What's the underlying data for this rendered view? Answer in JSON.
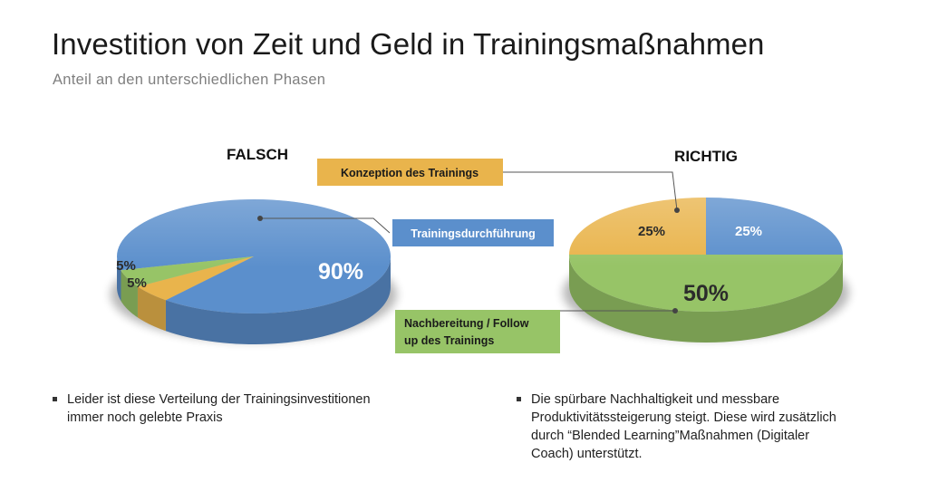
{
  "header": {
    "title": "Investition von Zeit und Geld in Trainingsmaßnahmen",
    "subtitle": "Anteil an den unterschiedlichen Phasen"
  },
  "colors": {
    "konzeption": "#e9b44c",
    "durchfuehrung": "#5b8fcc",
    "nachbereitung": "#97c467",
    "leader": "#555555"
  },
  "chart_data": [
    {
      "type": "pie",
      "title": "FALSCH",
      "slices": [
        {
          "label": "Trainingsdurchführung",
          "value": 90,
          "display": "90%",
          "color": "#5b8fcc"
        },
        {
          "label": "Konzeption des Trainings",
          "value": 5,
          "display": "5%",
          "color": "#e9b44c"
        },
        {
          "label": "Nachbereitung / Follow up des Trainings",
          "value": 5,
          "display": "5%",
          "color": "#97c467"
        }
      ]
    },
    {
      "type": "pie",
      "title": "RICHTIG",
      "slices": [
        {
          "label": "Konzeption des Trainings",
          "value": 25,
          "display": "25%",
          "color": "#e9b44c"
        },
        {
          "label": "Trainingsdurchführung",
          "value": 25,
          "display": "25%",
          "color": "#5b8fcc"
        },
        {
          "label": "Nachbereitung / Follow up des Trainings",
          "value": 50,
          "display": "50%",
          "color": "#97c467"
        }
      ]
    }
  ],
  "callouts": {
    "konzeption": "Konzeption des Trainings",
    "durchfuehrung": "Trainingsdurchführung",
    "nachbereitung_line1": "Nachbereitung / Follow",
    "nachbereitung_line2": "up des Trainings"
  },
  "bullets": {
    "left": {
      "line1": "Leider ist diese Verteilung der Trainingsinvestitionen",
      "line2": "immer noch gelebte Praxis"
    },
    "right": {
      "line1": "Die spürbare Nachhaltigkeit und messbare",
      "line2": "Produktivitätssteigerung steigt. Diese wird zusätzlich",
      "line3": "durch “Blended Learning”Maßnahmen (Digitaler",
      "line4": "Coach) unterstützt."
    }
  }
}
